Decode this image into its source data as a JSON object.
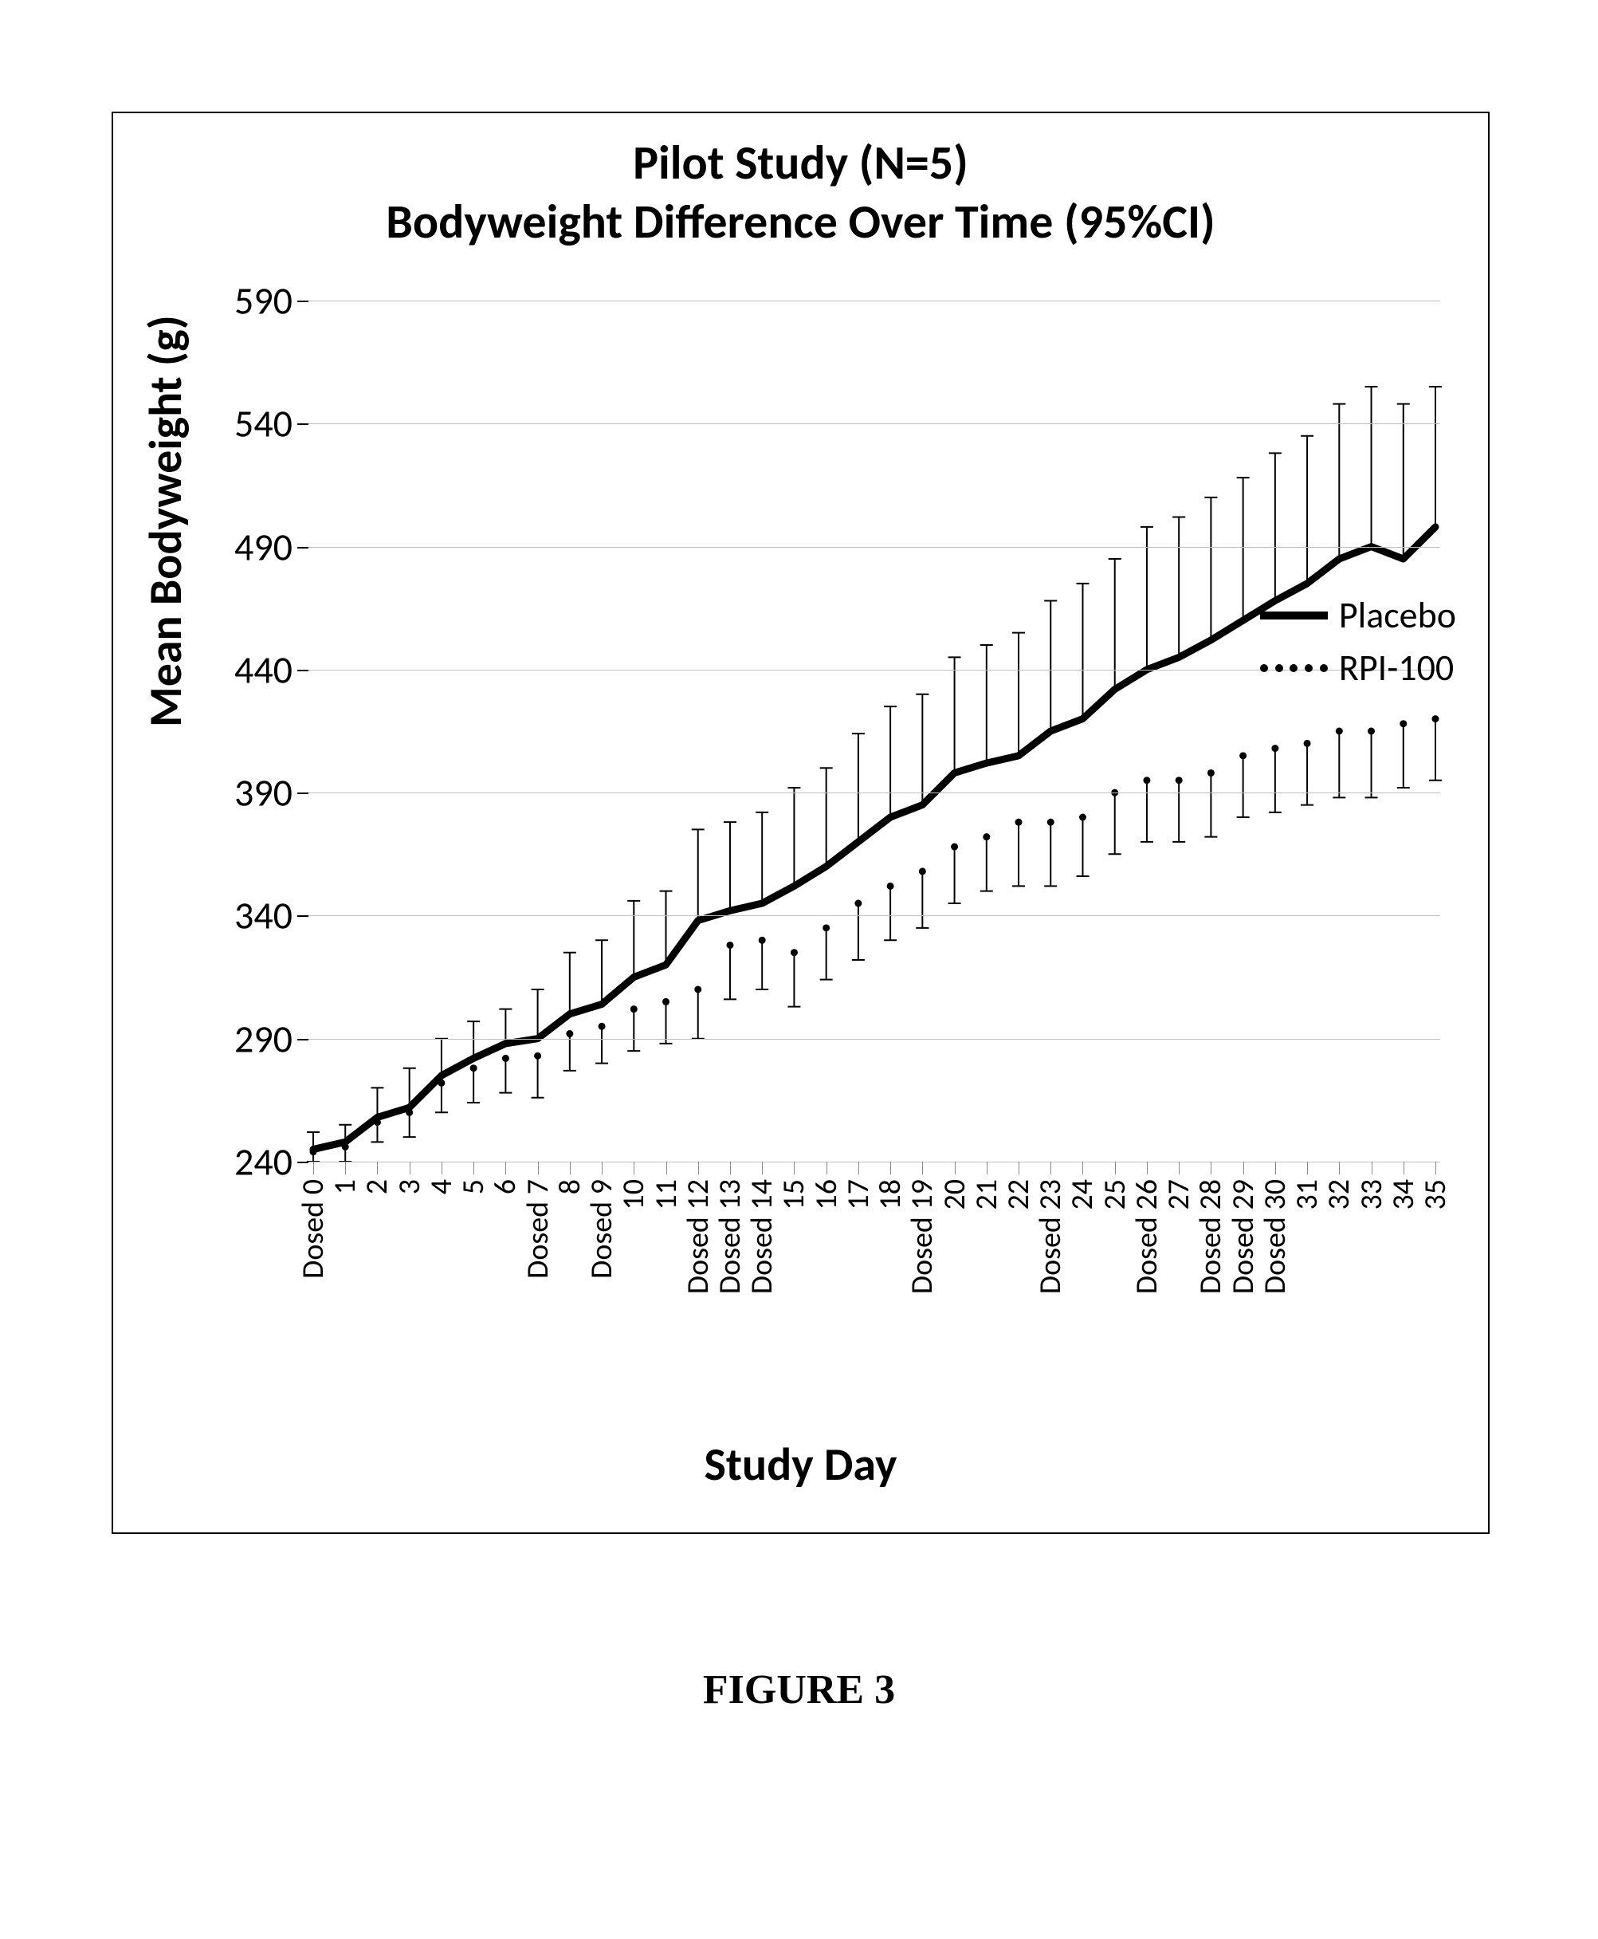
{
  "chart": {
    "type": "line-with-errorbars",
    "title_line1": "Pilot Study  (N=5)",
    "title_line2": "Bodyweight Difference Over Time (95%CI)",
    "title_fontsize": 60,
    "background_color": "#ffffff",
    "border_color": "#000000",
    "grid_color": "#bfbfbf",
    "ylabel": "Mean Bodyweight (g)",
    "xlabel": "Study Day",
    "axis_label_fontsize": 58,
    "axis_label_weight": "bold",
    "ylim": [
      240,
      590
    ],
    "ytick_step": 50,
    "yticks": [
      240,
      290,
      340,
      390,
      440,
      490,
      540,
      590
    ],
    "ytick_fontsize": 48,
    "x_categories": [
      "Dosed 0",
      "1",
      "2",
      "3",
      "4",
      "5",
      "6",
      "Dosed 7",
      "8",
      "Dosed 9",
      "10",
      "11",
      "Dosed 12",
      "Dosed 13",
      "Dosed 14",
      "15",
      "16",
      "17",
      "18",
      "Dosed 19",
      "20",
      "21",
      "22",
      "Dosed 23",
      "24",
      "25",
      "Dosed 26",
      "27",
      "Dosed 28",
      "Dosed 29",
      "Dosed 30",
      "31",
      "32",
      "33",
      "34",
      "35"
    ],
    "xtick_fontsize": 38,
    "xtick_rotation": -90,
    "series": {
      "placebo": {
        "label": "Placebo",
        "style": "solid",
        "line_width": 9,
        "color": "#000000",
        "values": [
          245,
          248,
          258,
          262,
          275,
          282,
          288,
          290,
          300,
          304,
          315,
          320,
          338,
          342,
          345,
          352,
          360,
          370,
          380,
          385,
          398,
          402,
          405,
          415,
          420,
          432,
          440,
          445,
          452,
          460,
          468,
          475,
          485,
          490,
          485,
          498
        ],
        "ci_upper": [
          252,
          255,
          270,
          278,
          290,
          297,
          302,
          310,
          325,
          330,
          346,
          350,
          375,
          378,
          382,
          392,
          400,
          414,
          425,
          430,
          445,
          450,
          455,
          468,
          475,
          485,
          498,
          502,
          510,
          518,
          528,
          535,
          548,
          555,
          548,
          555
        ],
        "plus_only": true,
        "errorbar_width": 2,
        "errorbar_cap": 8
      },
      "rpi100": {
        "label": "RPI-100",
        "style": "dotted-markers",
        "marker_radius": 4.5,
        "color": "#000000",
        "values": [
          244,
          246,
          256,
          260,
          272,
          278,
          282,
          283,
          292,
          295,
          302,
          305,
          310,
          328,
          330,
          325,
          335,
          345,
          352,
          358,
          368,
          372,
          378,
          378,
          380,
          390,
          395,
          395,
          398,
          405,
          408,
          410,
          415,
          415,
          418,
          420
        ],
        "ci_lower": [
          240,
          240,
          248,
          250,
          260,
          264,
          268,
          266,
          277,
          280,
          285,
          288,
          290,
          306,
          310,
          303,
          314,
          322,
          330,
          335,
          345,
          350,
          352,
          352,
          356,
          365,
          370,
          370,
          372,
          380,
          382,
          385,
          388,
          388,
          392,
          395
        ],
        "minus_only": true,
        "errorbar_width": 2,
        "errorbar_cap": 8
      }
    },
    "legend": {
      "position": "right-middle",
      "fontsize": 46
    }
  },
  "caption": "FIGURE 3"
}
